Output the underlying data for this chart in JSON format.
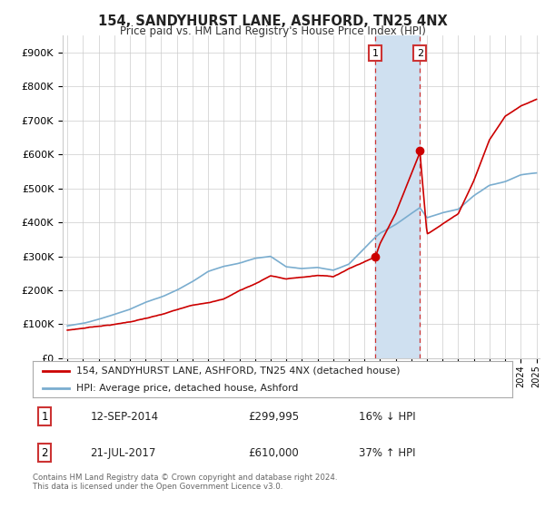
{
  "title": "154, SANDYHURST LANE, ASHFORD, TN25 4NX",
  "subtitle": "Price paid vs. HM Land Registry's House Price Index (HPI)",
  "legend_line1": "154, SANDYHURST LANE, ASHFORD, TN25 4NX (detached house)",
  "legend_line2": "HPI: Average price, detached house, Ashford",
  "annotation1_date": "12-SEP-2014",
  "annotation1_price": "£299,995",
  "annotation1_hpi": "16% ↓ HPI",
  "annotation2_date": "21-JUL-2017",
  "annotation2_price": "£610,000",
  "annotation2_hpi": "37% ↑ HPI",
  "footer": "Contains HM Land Registry data © Crown copyright and database right 2024.\nThis data is licensed under the Open Government Licence v3.0.",
  "red_color": "#cc0000",
  "blue_color": "#7aadcf",
  "shade_color": "#cfe0f0",
  "annotation_box_color": "#cc3333",
  "ylim_low": 0,
  "ylim_high": 950000,
  "yticks": [
    0,
    100000,
    200000,
    300000,
    400000,
    500000,
    600000,
    700000,
    800000,
    900000
  ],
  "ytick_labels": [
    "£0",
    "£100K",
    "£200K",
    "£300K",
    "£400K",
    "£500K",
    "£600K",
    "£700K",
    "£800K",
    "£900K"
  ],
  "x_start_year": 1995,
  "x_end_year": 2025,
  "point1_year": 2014.7,
  "point1_value": 299995,
  "point2_year": 2017.55,
  "point2_value": 610000,
  "grid_color": "#cccccc",
  "bg_color": "#ffffff",
  "key_years_red": [
    1995,
    1996,
    1997,
    1998,
    1999,
    2000,
    2001,
    2002,
    2003,
    2004,
    2005,
    2006,
    2007,
    2008,
    2009,
    2010,
    2011,
    2012,
    2013,
    2014.7,
    2015,
    2016,
    2017.55,
    2018,
    2019,
    2020,
    2021,
    2022,
    2023,
    2024,
    2025
  ],
  "key_vals_red": [
    82000,
    88000,
    95000,
    100000,
    108000,
    118000,
    128000,
    142000,
    155000,
    165000,
    175000,
    200000,
    220000,
    245000,
    235000,
    240000,
    245000,
    242000,
    265000,
    299995,
    340000,
    430000,
    610000,
    370000,
    400000,
    430000,
    530000,
    650000,
    720000,
    750000,
    770000
  ],
  "key_years_hpi": [
    1995,
    1996,
    1997,
    1998,
    1999,
    2000,
    2001,
    2002,
    2003,
    2004,
    2005,
    2006,
    2007,
    2008,
    2009,
    2010,
    2011,
    2012,
    2013,
    2014.7,
    2015,
    2016,
    2017.55,
    2018,
    2019,
    2020,
    2021,
    2022,
    2023,
    2024,
    2025
  ],
  "key_vals_hpi": [
    95000,
    103000,
    115000,
    130000,
    145000,
    165000,
    180000,
    200000,
    225000,
    255000,
    270000,
    280000,
    295000,
    300000,
    270000,
    265000,
    268000,
    260000,
    278000,
    358000,
    370000,
    395000,
    445000,
    415000,
    430000,
    440000,
    480000,
    510000,
    520000,
    540000,
    545000
  ]
}
